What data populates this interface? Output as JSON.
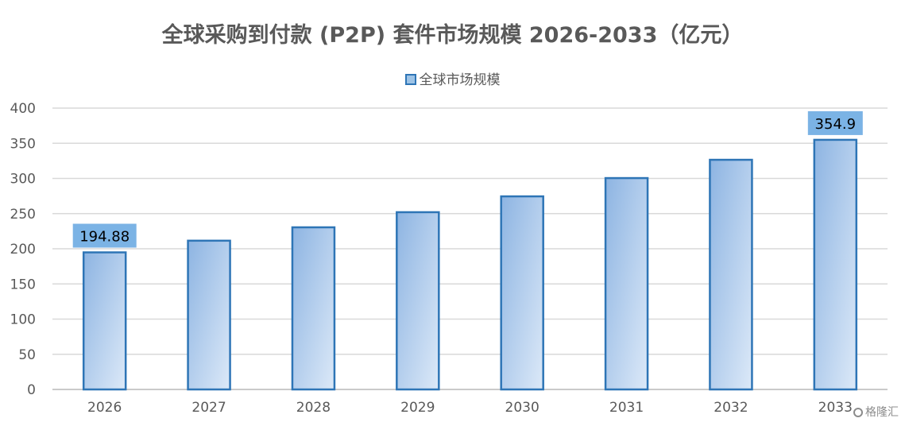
{
  "chart_data": {
    "type": "bar",
    "title": "全球采购到付款 (P2P) 套件市场规模 2026-2033（亿元）",
    "categories": [
      "2026",
      "2027",
      "2028",
      "2029",
      "2030",
      "2031",
      "2032",
      "2033"
    ],
    "series": [
      {
        "name": "全球市场规模",
        "values": [
          194.88,
          211.5,
          230.5,
          252.0,
          274.5,
          300.5,
          326.5,
          354.9
        ]
      }
    ],
    "data_labels": [
      "194.88",
      "",
      "",
      "",
      "",
      "",
      "",
      "354.9"
    ],
    "yticks": [
      "0",
      "50",
      "100",
      "150",
      "200",
      "250",
      "300",
      "350",
      "400"
    ],
    "ylim": [
      0,
      400
    ],
    "grid": true,
    "legend_position": "top",
    "colors": {
      "bar_border": "#2E75B6",
      "bar_gradient_start": "#8DB4E2",
      "bar_gradient_end": "#DCE9F8",
      "label_background": "#7BB3E5",
      "gridline": "#D9D9D9",
      "text": "#595959"
    }
  },
  "watermark": "格隆汇"
}
